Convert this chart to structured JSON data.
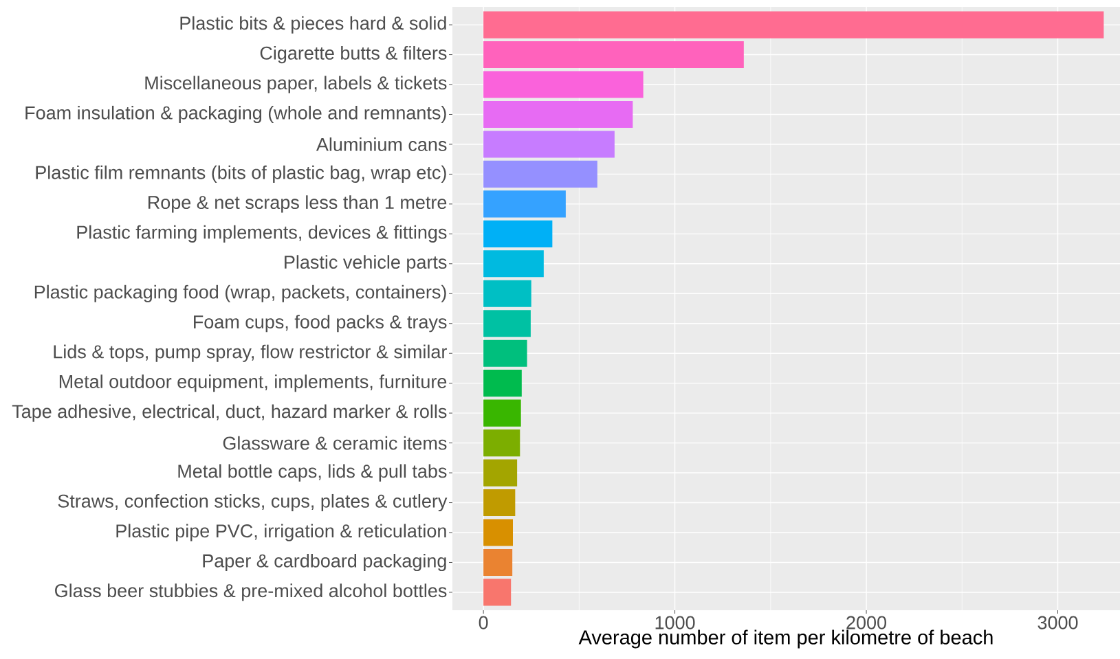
{
  "chart_data": {
    "type": "bar",
    "orientation": "horizontal",
    "xlabel": "Average number of item per kilometre of beach",
    "categories": [
      "Plastic bits & pieces hard & solid",
      "Cigarette butts & filters",
      "Miscellaneous paper, labels & tickets",
      "Foam insulation & packaging (whole and remnants)",
      "Aluminium cans",
      "Plastic film remnants (bits of plastic bag, wrap etc)",
      "Rope & net scraps less than 1 metre",
      "Plastic farming implements, devices & fittings",
      "Plastic vehicle parts",
      "Plastic packaging food (wrap, packets, containers)",
      "Foam cups, food packs & trays",
      "Lids & tops, pump spray, flow restrictor & similar",
      "Metal outdoor equipment, implements, furniture",
      "Tape adhesive, electrical, duct, hazard marker & rolls",
      "Glassware & ceramic items",
      "Metal bottle caps, lids & pull tabs",
      "Straws, confection sticks, cups, plates & cutlery",
      "Plastic pipe PVC, irrigation & reticulation",
      "Paper & cardboard packaging",
      "Glass beer stubbies & pre-mixed alcohol bottles"
    ],
    "values": [
      3240,
      1360,
      835,
      780,
      685,
      595,
      430,
      360,
      315,
      250,
      247,
      228,
      200,
      196,
      191,
      176,
      166,
      154,
      151,
      144
    ],
    "colors": [
      "#FF6C91",
      "#FF62BC",
      "#FA62DB",
      "#E76BF3",
      "#C77CFF",
      "#9590FF",
      "#35A2FF",
      "#00B0F6",
      "#00BAE0",
      "#00BFC4",
      "#00C1A3",
      "#00BF7D",
      "#00BB4E",
      "#39B600",
      "#7CAE00",
      "#A3A500",
      "#C09B00",
      "#D89000",
      "#EA8331",
      "#F8766D"
    ],
    "xlim": [
      -162,
      3325
    ],
    "xticks": [
      0,
      1000,
      2000,
      3000
    ],
    "grid": true
  }
}
